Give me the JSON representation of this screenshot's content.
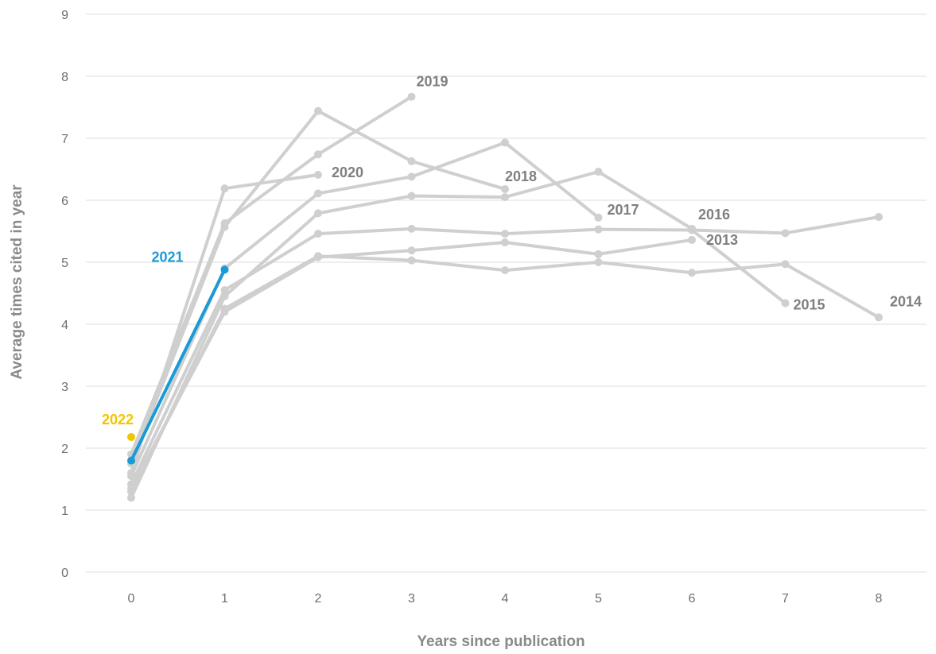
{
  "chart_data": {
    "type": "line",
    "xlabel": "Years since publication",
    "ylabel": "Average times cited in year",
    "xlim": [
      0,
      8
    ],
    "ylim": [
      0,
      9
    ],
    "x_ticks": [
      "0",
      "1",
      "2",
      "3",
      "4",
      "5",
      "6",
      "7",
      "8"
    ],
    "y_ticks": [
      "0",
      "1",
      "2",
      "3",
      "4",
      "5",
      "6",
      "7",
      "8",
      "9"
    ],
    "grid": true,
    "legend": "direct labels at line ends",
    "colors": {
      "default": "#cfcfcf",
      "highlight": "#1a9ad6",
      "latest": "#f2c500",
      "label": "#7f7f7f",
      "grid": "#dcdcdc"
    },
    "series": [
      {
        "name": "2013",
        "values": [
          1.35,
          4.2,
          5.08,
          5.19,
          5.32,
          5.13,
          5.36,
          null,
          null
        ]
      },
      {
        "name": "2013",
        "values": [
          null,
          null,
          null,
          null,
          null,
          null,
          5.52,
          5.47,
          5.73
        ]
      },
      {
        "name": "2014",
        "values": [
          1.3,
          4.25,
          5.1,
          5.03,
          4.87,
          5.0,
          4.83,
          4.97,
          4.11
        ]
      },
      {
        "name": "2015",
        "values": [
          1.42,
          4.55,
          5.46,
          5.54,
          5.46,
          5.53,
          5.52,
          4.34,
          null
        ]
      },
      {
        "name": "2016",
        "values": [
          1.2,
          4.45,
          5.79,
          6.07,
          6.05,
          6.46,
          5.54,
          null,
          null
        ]
      },
      {
        "name": "2017",
        "values": [
          1.55,
          4.9,
          6.11,
          6.38,
          6.93,
          5.72,
          null,
          null,
          null
        ]
      },
      {
        "name": "2018",
        "values": [
          1.75,
          5.57,
          7.44,
          6.63,
          6.18,
          null,
          null,
          null,
          null
        ]
      },
      {
        "name": "2019",
        "values": [
          1.9,
          5.63,
          6.74,
          7.67,
          null,
          null,
          null,
          null,
          null
        ]
      },
      {
        "name": "2020",
        "values": [
          1.6,
          6.19,
          6.41,
          null,
          null,
          null,
          null,
          null,
          null
        ]
      },
      {
        "name": "2021",
        "values": [
          1.8,
          4.88,
          null,
          null,
          null,
          null,
          null,
          null,
          null
        ]
      },
      {
        "name": "2022",
        "values": [
          2.18,
          null,
          null,
          null,
          null,
          null,
          null,
          null,
          null
        ]
      }
    ]
  }
}
